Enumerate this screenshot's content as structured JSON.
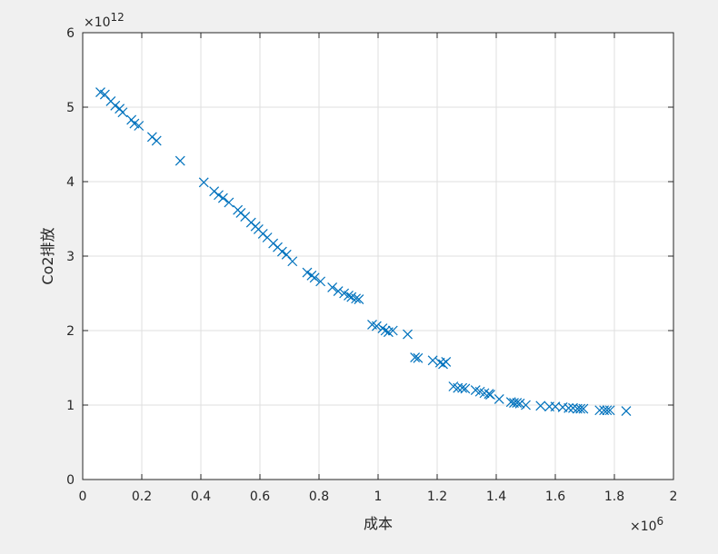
{
  "chart_data": {
    "type": "scatter",
    "title": "",
    "xlabel": "成本",
    "ylabel": "Co2排放",
    "x_exponent_label": "×10",
    "x_exponent_power": "6",
    "y_exponent_label": "×10",
    "y_exponent_power": "12",
    "xlim": [
      0,
      2
    ],
    "ylim": [
      0,
      6
    ],
    "x_ticks": [
      "0",
      "0.2",
      "0.4",
      "0.6",
      "0.8",
      "1",
      "1.2",
      "1.4",
      "1.6",
      "1.8",
      "2"
    ],
    "y_ticks": [
      "0",
      "1",
      "2",
      "3",
      "4",
      "5",
      "6"
    ],
    "grid": true,
    "marker": "x",
    "marker_color": "#0072bd",
    "x": [
      0.06,
      0.075,
      0.095,
      0.11,
      0.125,
      0.135,
      0.165,
      0.175,
      0.19,
      0.235,
      0.25,
      0.33,
      0.41,
      0.445,
      0.46,
      0.475,
      0.495,
      0.525,
      0.535,
      0.55,
      0.57,
      0.585,
      0.595,
      0.61,
      0.625,
      0.645,
      0.66,
      0.675,
      0.69,
      0.71,
      0.76,
      0.775,
      0.785,
      0.805,
      0.845,
      0.865,
      0.885,
      0.9,
      0.91,
      0.925,
      0.935,
      0.98,
      0.995,
      1.015,
      1.025,
      1.035,
      1.05,
      1.1,
      1.125,
      1.135,
      1.185,
      1.21,
      1.22,
      1.23,
      1.255,
      1.27,
      1.285,
      1.295,
      1.33,
      1.345,
      1.36,
      1.375,
      1.38,
      1.41,
      1.45,
      1.46,
      1.47,
      1.48,
      1.5,
      1.55,
      1.58,
      1.6,
      1.625,
      1.645,
      1.66,
      1.675,
      1.685,
      1.695,
      1.75,
      1.765,
      1.775,
      1.785,
      1.84
    ],
    "y": [
      5.2,
      5.17,
      5.08,
      5.02,
      4.98,
      4.93,
      4.83,
      4.78,
      4.75,
      4.6,
      4.55,
      4.28,
      3.99,
      3.87,
      3.82,
      3.78,
      3.72,
      3.62,
      3.58,
      3.53,
      3.45,
      3.4,
      3.36,
      3.3,
      3.25,
      3.17,
      3.12,
      3.06,
      3.02,
      2.93,
      2.78,
      2.74,
      2.71,
      2.66,
      2.58,
      2.53,
      2.5,
      2.47,
      2.45,
      2.43,
      2.42,
      2.08,
      2.06,
      2.03,
      2.0,
      1.98,
      2.0,
      1.95,
      1.64,
      1.63,
      1.6,
      1.57,
      1.55,
      1.58,
      1.25,
      1.23,
      1.23,
      1.22,
      1.2,
      1.18,
      1.16,
      1.15,
      1.14,
      1.08,
      1.04,
      1.03,
      1.03,
      1.02,
      1.0,
      0.99,
      0.98,
      0.98,
      0.97,
      0.96,
      0.96,
      0.95,
      0.95,
      0.95,
      0.93,
      0.93,
      0.93,
      0.93,
      0.92
    ]
  }
}
